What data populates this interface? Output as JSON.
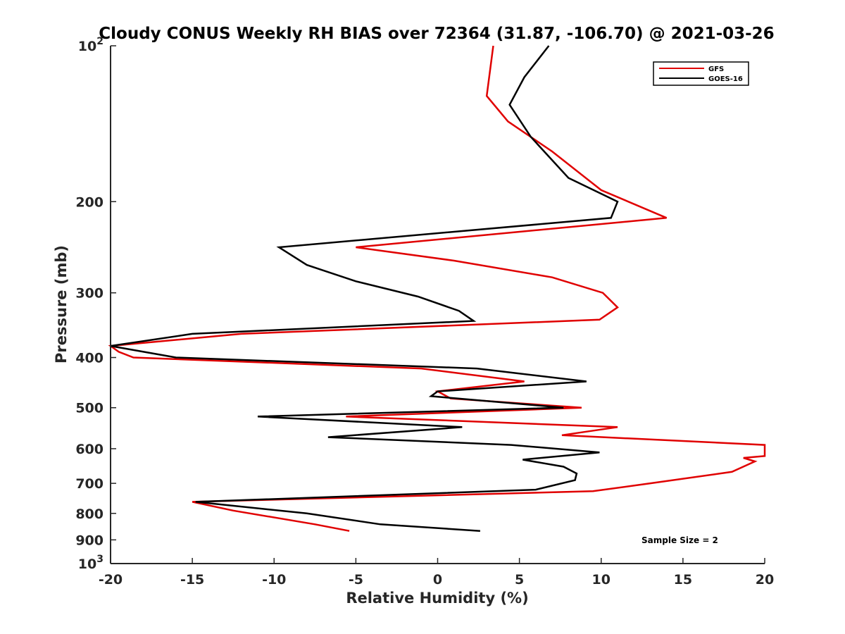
{
  "chart_data": {
    "type": "line",
    "title": "Cloudy CONUS Weekly RH BIAS over 72364 (31.87, -106.70) @ 2021-03-26",
    "xlabel": "Relative Humidity (%)",
    "ylabel": "Pressure (mb)",
    "xlim": [
      -20,
      20
    ],
    "ylim": [
      100,
      1000
    ],
    "y_scale": "log",
    "y_reversed": true,
    "grid": false,
    "legend_position": "top-right",
    "x_ticks": [
      "-20",
      "-15",
      "-10",
      "-5",
      "0",
      "5",
      "10",
      "15",
      "20"
    ],
    "y_ticks": [
      {
        "value": 100,
        "base": "10",
        "exp": "2"
      },
      {
        "value": 200,
        "base": "200",
        "exp": ""
      },
      {
        "value": 300,
        "base": "300",
        "exp": ""
      },
      {
        "value": 400,
        "base": "400",
        "exp": ""
      },
      {
        "value": 500,
        "base": "500",
        "exp": ""
      },
      {
        "value": 600,
        "base": "600",
        "exp": ""
      },
      {
        "value": 700,
        "base": "700",
        "exp": ""
      },
      {
        "value": 800,
        "base": "800",
        "exp": ""
      },
      {
        "value": 900,
        "base": "900",
        "exp": ""
      },
      {
        "value": 1000,
        "base": "10",
        "exp": "3"
      }
    ],
    "annotation": "Sample Size = 2",
    "series": [
      {
        "name": "GFS",
        "color": "#e00000",
        "points": [
          [
            3.4,
            100
          ],
          [
            3.0,
            125
          ],
          [
            4.3,
            140
          ],
          [
            7.0,
            160
          ],
          [
            10.0,
            190
          ],
          [
            14.0,
            215
          ],
          [
            -5.0,
            245
          ],
          [
            1.0,
            260
          ],
          [
            7.0,
            280
          ],
          [
            10.1,
            300
          ],
          [
            11.0,
            320
          ],
          [
            9.9,
            338
          ],
          [
            -12.0,
            360
          ],
          [
            -20.0,
            380
          ],
          [
            -19.5,
            390
          ],
          [
            -18.6,
            400
          ],
          [
            -1.0,
            420
          ],
          [
            5.3,
            445
          ],
          [
            0.0,
            465
          ],
          [
            0.8,
            480
          ],
          [
            8.8,
            500
          ],
          [
            -5.6,
            520
          ],
          [
            11.0,
            545
          ],
          [
            7.6,
            565
          ],
          [
            20.0,
            590
          ],
          [
            20.0,
            620
          ],
          [
            18.7,
            625
          ],
          [
            19.4,
            635
          ],
          [
            18.0,
            665
          ],
          [
            13.0,
            700
          ],
          [
            9.5,
            725
          ],
          [
            -15.0,
            760
          ],
          [
            -12.5,
            790
          ],
          [
            -7.5,
            840
          ],
          [
            -5.4,
            865
          ]
        ]
      },
      {
        "name": "GOES-16",
        "color": "#000000",
        "points": [
          [
            6.8,
            100
          ],
          [
            5.3,
            115
          ],
          [
            4.4,
            130
          ],
          [
            5.7,
            150
          ],
          [
            8.0,
            180
          ],
          [
            11.0,
            200
          ],
          [
            10.6,
            215
          ],
          [
            -9.7,
            245
          ],
          [
            -8.0,
            265
          ],
          [
            -5.0,
            285
          ],
          [
            -1.2,
            305
          ],
          [
            1.3,
            325
          ],
          [
            2.2,
            340
          ],
          [
            -15.0,
            360
          ],
          [
            -20.0,
            380
          ],
          [
            -16.0,
            400
          ],
          [
            2.4,
            420
          ],
          [
            9.1,
            445
          ],
          [
            0.0,
            465
          ],
          [
            -0.4,
            475
          ],
          [
            7.7,
            500
          ],
          [
            -11.0,
            520
          ],
          [
            1.5,
            545
          ],
          [
            -6.7,
            570
          ],
          [
            4.5,
            590
          ],
          [
            9.9,
            610
          ],
          [
            5.2,
            630
          ],
          [
            7.7,
            650
          ],
          [
            8.5,
            670
          ],
          [
            8.4,
            690
          ],
          [
            6.0,
            720
          ],
          [
            -14.8,
            760
          ],
          [
            -8.0,
            800
          ],
          [
            -3.5,
            840
          ],
          [
            2.6,
            865
          ]
        ]
      }
    ]
  }
}
